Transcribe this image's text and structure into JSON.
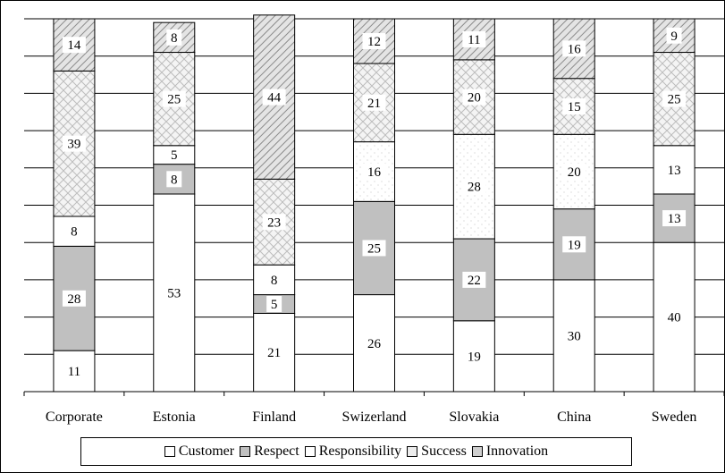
{
  "chart_data": {
    "type": "bar",
    "stacked": true,
    "categories": [
      "Corporate",
      "Estonia",
      "Finland",
      "Swizerland",
      "Slovakia",
      "China",
      "Sweden"
    ],
    "series": [
      {
        "name": "Customer",
        "values": [
          11,
          53,
          21,
          26,
          19,
          30,
          40
        ],
        "fill": "#ffffff"
      },
      {
        "name": "Respect",
        "values": [
          28,
          8,
          5,
          25,
          22,
          19,
          13
        ],
        "fill": "#c0c0c0"
      },
      {
        "name": "Responsibility",
        "values": [
          8,
          5,
          8,
          16,
          28,
          20,
          13
        ],
        "fill": "#ffffff"
      },
      {
        "name": "Success",
        "values": [
          39,
          25,
          23,
          21,
          20,
          15,
          25
        ],
        "fill": "crosshatch"
      },
      {
        "name": "Innovation",
        "values": [
          14,
          8,
          44,
          12,
          11,
          16,
          9
        ],
        "fill": "diagonal"
      }
    ],
    "ylim": [
      0,
      100
    ],
    "grid": true,
    "legend_position": "bottom"
  }
}
